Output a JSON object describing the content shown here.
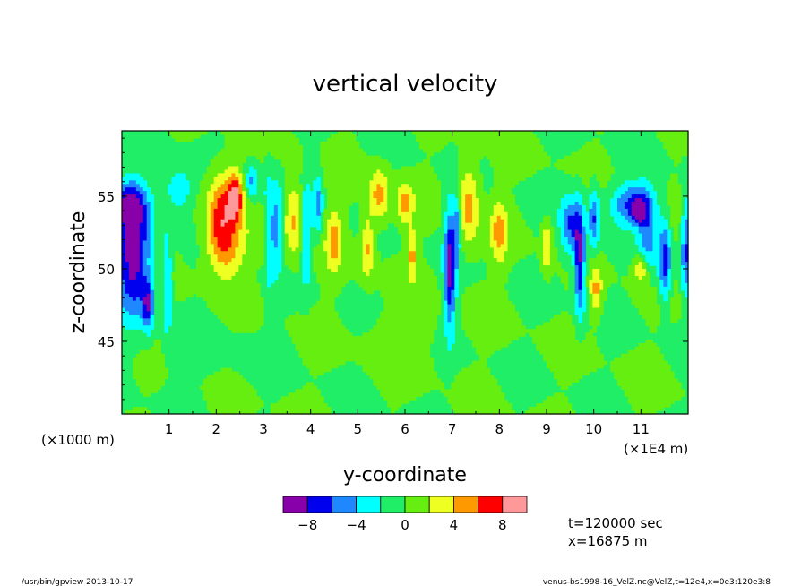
{
  "chart_data": {
    "type": "heatmap",
    "title": "vertical velocity",
    "xlabel": "y-coordinate",
    "ylabel": "z-coordinate",
    "x_unit_left": "(×1000 m)",
    "x_unit_right": "(×1E4 m)",
    "xlim": [
      0,
      120000
    ],
    "ylim": [
      40000,
      59500
    ],
    "x_ticks": [
      {
        "value": 10000,
        "label": "1"
      },
      {
        "value": 20000,
        "label": "2"
      },
      {
        "value": 30000,
        "label": "3"
      },
      {
        "value": 40000,
        "label": "4"
      },
      {
        "value": 50000,
        "label": "5"
      },
      {
        "value": 60000,
        "label": "6"
      },
      {
        "value": 70000,
        "label": "7"
      },
      {
        "value": 80000,
        "label": "8"
      },
      {
        "value": 90000,
        "label": "9"
      },
      {
        "value": 100000,
        "label": "10"
      },
      {
        "value": 110000,
        "label": "11"
      }
    ],
    "y_ticks": [
      {
        "value": 45000,
        "label": "45"
      },
      {
        "value": 50000,
        "label": "50"
      },
      {
        "value": 55000,
        "label": "55"
      }
    ],
    "colorbar": {
      "colors": [
        "#8800aa",
        "#0000ee",
        "#1f88ff",
        "#00ffff",
        "#1fee66",
        "#66ee11",
        "#eeff22",
        "#ff9900",
        "#ff0000",
        "#ff9999"
      ],
      "ticks": [
        {
          "value": -8,
          "label": "−8"
        },
        {
          "value": -4,
          "label": "−4"
        },
        {
          "value": 0,
          "label": "0"
        },
        {
          "value": 4,
          "label": "4"
        },
        {
          "value": 8,
          "label": "8"
        }
      ],
      "range": [
        -10,
        10
      ]
    },
    "background_level": 0,
    "features": [
      {
        "x": 2500,
        "y": 51000,
        "sx": 2500,
        "sy": 3000,
        "amp": -9.5
      },
      {
        "x": 1500,
        "y": 54500,
        "sx": 3000,
        "sy": 1000,
        "amp": -5
      },
      {
        "x": 5500,
        "y": 47500,
        "sx": 800,
        "sy": 1200,
        "amp": -6.5
      },
      {
        "x": 9500,
        "y": 49000,
        "sx": 700,
        "sy": 2500,
        "amp": -4.5
      },
      {
        "x": 12000,
        "y": 55500,
        "sx": 2000,
        "sy": 1000,
        "amp": -4.5
      },
      {
        "x": 21000,
        "y": 54000,
        "sx": 2000,
        "sy": 2000,
        "amp": 6
      },
      {
        "x": 24000,
        "y": 55000,
        "sx": 1200,
        "sy": 1200,
        "amp": 8
      },
      {
        "x": 22000,
        "y": 51500,
        "sx": 3000,
        "sy": 1500,
        "amp": 4.5
      },
      {
        "x": 27500,
        "y": 56000,
        "sx": 1000,
        "sy": 800,
        "amp": -4.5
      },
      {
        "x": 31000,
        "y": 52500,
        "sx": 800,
        "sy": 2500,
        "amp": -7
      },
      {
        "x": 33000,
        "y": 53000,
        "sx": 700,
        "sy": 2000,
        "amp": -5
      },
      {
        "x": 30500,
        "y": 52000,
        "sx": 700,
        "sy": 1800,
        "amp": 4.5
      },
      {
        "x": 36500,
        "y": 53500,
        "sx": 1500,
        "sy": 2000,
        "amp": 4.5
      },
      {
        "x": 39000,
        "y": 52500,
        "sx": 800,
        "sy": 2500,
        "amp": -5
      },
      {
        "x": 41500,
        "y": 54500,
        "sx": 700,
        "sy": 1500,
        "amp": -4.5
      },
      {
        "x": 45000,
        "y": 52000,
        "sx": 1200,
        "sy": 1500,
        "amp": 4.5
      },
      {
        "x": 52000,
        "y": 51500,
        "sx": 1000,
        "sy": 1500,
        "amp": 4.5
      },
      {
        "x": 54500,
        "y": 55000,
        "sx": 1500,
        "sy": 1300,
        "amp": 5
      },
      {
        "x": 60000,
        "y": 54500,
        "sx": 1200,
        "sy": 1000,
        "amp": 4.5
      },
      {
        "x": 61500,
        "y": 51000,
        "sx": 800,
        "sy": 1200,
        "amp": 4.5
      },
      {
        "x": 69500,
        "y": 50000,
        "sx": 900,
        "sy": 3000,
        "amp": -8.5
      },
      {
        "x": 71000,
        "y": 53000,
        "sx": 600,
        "sy": 1500,
        "amp": -4.5
      },
      {
        "x": 73500,
        "y": 54500,
        "sx": 1500,
        "sy": 2000,
        "amp": 5
      },
      {
        "x": 80000,
        "y": 52500,
        "sx": 1200,
        "sy": 1500,
        "amp": 4.5
      },
      {
        "x": 90000,
        "y": 51500,
        "sx": 700,
        "sy": 1200,
        "amp": 4.5
      },
      {
        "x": 95000,
        "y": 53000,
        "sx": 1500,
        "sy": 1500,
        "amp": -6
      },
      {
        "x": 97000,
        "y": 50500,
        "sx": 800,
        "sy": 2500,
        "amp": -8.5
      },
      {
        "x": 100000,
        "y": 53500,
        "sx": 800,
        "sy": 1500,
        "amp": -6
      },
      {
        "x": 100500,
        "y": 48500,
        "sx": 900,
        "sy": 1200,
        "amp": 4.5
      },
      {
        "x": 108000,
        "y": 54500,
        "sx": 3000,
        "sy": 1000,
        "amp": -6.5
      },
      {
        "x": 109500,
        "y": 54000,
        "sx": 900,
        "sy": 500,
        "amp": -9.5
      },
      {
        "x": 111500,
        "y": 52500,
        "sx": 1500,
        "sy": 2000,
        "amp": -5
      },
      {
        "x": 115000,
        "y": 50500,
        "sx": 900,
        "sy": 2000,
        "amp": -7
      },
      {
        "x": 119500,
        "y": 51500,
        "sx": 700,
        "sy": 2500,
        "amp": -6
      },
      {
        "x": 110000,
        "y": 50000,
        "sx": 1000,
        "sy": 700,
        "amp": 4.5
      },
      {
        "x": 60000,
        "y": 45500,
        "sx": 6000,
        "sy": 1500,
        "amp": 1.2
      },
      {
        "x": 20000,
        "y": 44000,
        "sx": 8000,
        "sy": 1500,
        "amp": -0.6
      }
    ]
  },
  "annotations": {
    "time": "t=120000 sec",
    "position": "x=16875 m"
  },
  "footer": {
    "left": "/usr/bin/gpview  2013-10-17",
    "right": "venus-bs1998-16_VelZ.nc@VelZ,t=12e4,x=0e3:120e3:8"
  }
}
